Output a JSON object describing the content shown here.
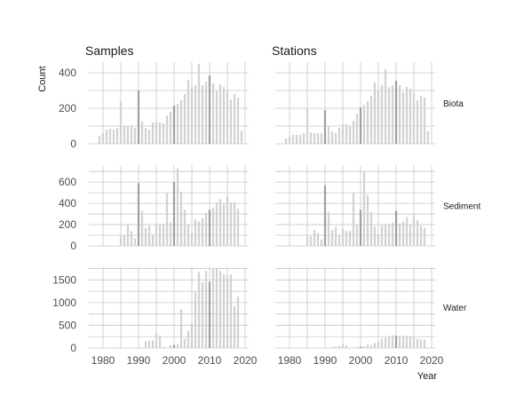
{
  "chart_data": {
    "type": "bar",
    "layout": "facet-grid",
    "columns": [
      "Samples",
      "Stations"
    ],
    "xlabel": "Year",
    "ylabel": "Count",
    "x_ticks": [
      1980,
      1990,
      2000,
      2010,
      2020
    ],
    "x_range": [
      1976,
      2021
    ],
    "grid": true,
    "bar_color": "#d2d2d2",
    "highlight_color": "#a0a0a0",
    "highlight_years": [
      1990,
      2000,
      2010
    ],
    "rows": [
      {
        "name": "Biota",
        "y_range": [
          0,
          460
        ],
        "y_ticks": [
          0,
          200,
          400
        ],
        "panels": [
          {
            "column": "Samples",
            "points": [
              [
                1979,
                45
              ],
              [
                1980,
                60
              ],
              [
                1981,
                80
              ],
              [
                1982,
                85
              ],
              [
                1983,
                80
              ],
              [
                1984,
                90
              ],
              [
                1985,
                240
              ],
              [
                1986,
                100
              ],
              [
                1987,
                100
              ],
              [
                1988,
                100
              ],
              [
                1989,
                90
              ],
              [
                1990,
                300
              ],
              [
                1991,
                125
              ],
              [
                1992,
                90
              ],
              [
                1993,
                80
              ],
              [
                1994,
                120
              ],
              [
                1995,
                125
              ],
              [
                1996,
                120
              ],
              [
                1997,
                115
              ],
              [
                1998,
                160
              ],
              [
                1999,
                180
              ],
              [
                2000,
                215
              ],
              [
                2001,
                225
              ],
              [
                2002,
                245
              ],
              [
                2003,
                280
              ],
              [
                2004,
                360
              ],
              [
                2005,
                320
              ],
              [
                2006,
                330
              ],
              [
                2007,
                450
              ],
              [
                2008,
                330
              ],
              [
                2009,
                350
              ],
              [
                2010,
                385
              ],
              [
                2011,
                340
              ],
              [
                2012,
                300
              ],
              [
                2013,
                335
              ],
              [
                2014,
                320
              ],
              [
                2015,
                300
              ],
              [
                2016,
                250
              ],
              [
                2017,
                280
              ],
              [
                2018,
                260
              ],
              [
                2019,
                75
              ]
            ]
          },
          {
            "column": "Stations",
            "points": [
              [
                1979,
                30
              ],
              [
                1980,
                40
              ],
              [
                1981,
                50
              ],
              [
                1982,
                50
              ],
              [
                1983,
                50
              ],
              [
                1984,
                60
              ],
              [
                1985,
                200
              ],
              [
                1986,
                65
              ],
              [
                1987,
                60
              ],
              [
                1988,
                60
              ],
              [
                1989,
                60
              ],
              [
                1990,
                190
              ],
              [
                1991,
                100
              ],
              [
                1992,
                70
              ],
              [
                1993,
                60
              ],
              [
                1994,
                90
              ],
              [
                1995,
                110
              ],
              [
                1996,
                110
              ],
              [
                1997,
                100
              ],
              [
                1998,
                130
              ],
              [
                1999,
                170
              ],
              [
                2000,
                205
              ],
              [
                2001,
                220
              ],
              [
                2002,
                240
              ],
              [
                2003,
                270
              ],
              [
                2004,
                345
              ],
              [
                2005,
                300
              ],
              [
                2006,
                330
              ],
              [
                2007,
                420
              ],
              [
                2008,
                320
              ],
              [
                2009,
                330
              ],
              [
                2010,
                355
              ],
              [
                2011,
                330
              ],
              [
                2012,
                290
              ],
              [
                2013,
                320
              ],
              [
                2014,
                310
              ],
              [
                2015,
                290
              ],
              [
                2016,
                245
              ],
              [
                2017,
                270
              ],
              [
                2018,
                260
              ],
              [
                2019,
                70
              ]
            ]
          }
        ]
      },
      {
        "name": "Sediment",
        "y_range": [
          0,
          760
        ],
        "y_ticks": [
          0,
          200,
          400,
          600
        ],
        "panels": [
          {
            "column": "Samples",
            "points": [
              [
                1985,
                90
              ],
              [
                1986,
                100
              ],
              [
                1987,
                200
              ],
              [
                1988,
                140
              ],
              [
                1989,
                70
              ],
              [
                1990,
                590
              ],
              [
                1991,
                330
              ],
              [
                1992,
                170
              ],
              [
                1993,
                190
              ],
              [
                1994,
                110
              ],
              [
                1995,
                210
              ],
              [
                1996,
                200
              ],
              [
                1997,
                210
              ],
              [
                1998,
                500
              ],
              [
                1999,
                220
              ],
              [
                2000,
                600
              ],
              [
                2001,
                730
              ],
              [
                2002,
                510
              ],
              [
                2003,
                340
              ],
              [
                2004,
                200
              ],
              [
                2005,
                120
              ],
              [
                2006,
                250
              ],
              [
                2007,
                230
              ],
              [
                2008,
                260
              ],
              [
                2009,
                310
              ],
              [
                2010,
                340
              ],
              [
                2011,
                360
              ],
              [
                2012,
                410
              ],
              [
                2013,
                440
              ],
              [
                2014,
                400
              ],
              [
                2015,
                470
              ],
              [
                2016,
                410
              ],
              [
                2017,
                410
              ],
              [
                2018,
                350
              ]
            ]
          },
          {
            "column": "Stations",
            "points": [
              [
                1985,
                90
              ],
              [
                1986,
                90
              ],
              [
                1987,
                150
              ],
              [
                1988,
                120
              ],
              [
                1989,
                60
              ],
              [
                1990,
                570
              ],
              [
                1991,
                320
              ],
              [
                1992,
                150
              ],
              [
                1993,
                180
              ],
              [
                1994,
                100
              ],
              [
                1995,
                160
              ],
              [
                1996,
                140
              ],
              [
                1997,
                140
              ],
              [
                1998,
                500
              ],
              [
                1999,
                200
              ],
              [
                2000,
                340
              ],
              [
                2001,
                700
              ],
              [
                2002,
                480
              ],
              [
                2003,
                320
              ],
              [
                2004,
                180
              ],
              [
                2005,
                110
              ],
              [
                2006,
                190
              ],
              [
                2007,
                200
              ],
              [
                2008,
                200
              ],
              [
                2009,
                220
              ],
              [
                2010,
                330
              ],
              [
                2011,
                210
              ],
              [
                2012,
                230
              ],
              [
                2013,
                270
              ],
              [
                2014,
                200
              ],
              [
                2015,
                290
              ],
              [
                2016,
                240
              ],
              [
                2017,
                190
              ],
              [
                2018,
                170
              ]
            ]
          }
        ]
      },
      {
        "name": "Water",
        "y_range": [
          0,
          1800
        ],
        "y_ticks": [
          0,
          500,
          1000,
          1500
        ],
        "panels": [
          {
            "column": "Samples",
            "points": [
              [
                1991,
                10
              ],
              [
                1992,
                150
              ],
              [
                1993,
                160
              ],
              [
                1994,
                170
              ],
              [
                1995,
                340
              ],
              [
                1996,
                270
              ],
              [
                1997,
                20
              ],
              [
                1998,
                10
              ],
              [
                1999,
                60
              ],
              [
                2000,
                70
              ],
              [
                2001,
                80
              ],
              [
                2002,
                850
              ],
              [
                2003,
                200
              ],
              [
                2004,
                380
              ],
              [
                2005,
                550
              ],
              [
                2006,
                1230
              ],
              [
                2007,
                1680
              ],
              [
                2008,
                1450
              ],
              [
                2009,
                1700
              ],
              [
                2010,
                1460
              ],
              [
                2011,
                1750
              ],
              [
                2012,
                1760
              ],
              [
                2013,
                1700
              ],
              [
                2014,
                1630
              ],
              [
                2015,
                1590
              ],
              [
                2016,
                1620
              ],
              [
                2017,
                920
              ],
              [
                2018,
                1130
              ]
            ]
          },
          {
            "column": "Stations",
            "points": [
              [
                1991,
                10
              ],
              [
                1992,
                30
              ],
              [
                1993,
                30
              ],
              [
                1994,
                40
              ],
              [
                1995,
                80
              ],
              [
                1996,
                60
              ],
              [
                1997,
                10
              ],
              [
                1998,
                10
              ],
              [
                1999,
                20
              ],
              [
                2000,
                30
              ],
              [
                2001,
                40
              ],
              [
                2002,
                80
              ],
              [
                2003,
                60
              ],
              [
                2004,
                110
              ],
              [
                2005,
                140
              ],
              [
                2006,
                200
              ],
              [
                2007,
                230
              ],
              [
                2008,
                240
              ],
              [
                2009,
                280
              ],
              [
                2010,
                270
              ],
              [
                2011,
                260
              ],
              [
                2012,
                270
              ],
              [
                2013,
                260
              ],
              [
                2014,
                260
              ],
              [
                2015,
                250
              ],
              [
                2016,
                200
              ],
              [
                2017,
                180
              ],
              [
                2018,
                190
              ]
            ]
          }
        ]
      }
    ]
  }
}
